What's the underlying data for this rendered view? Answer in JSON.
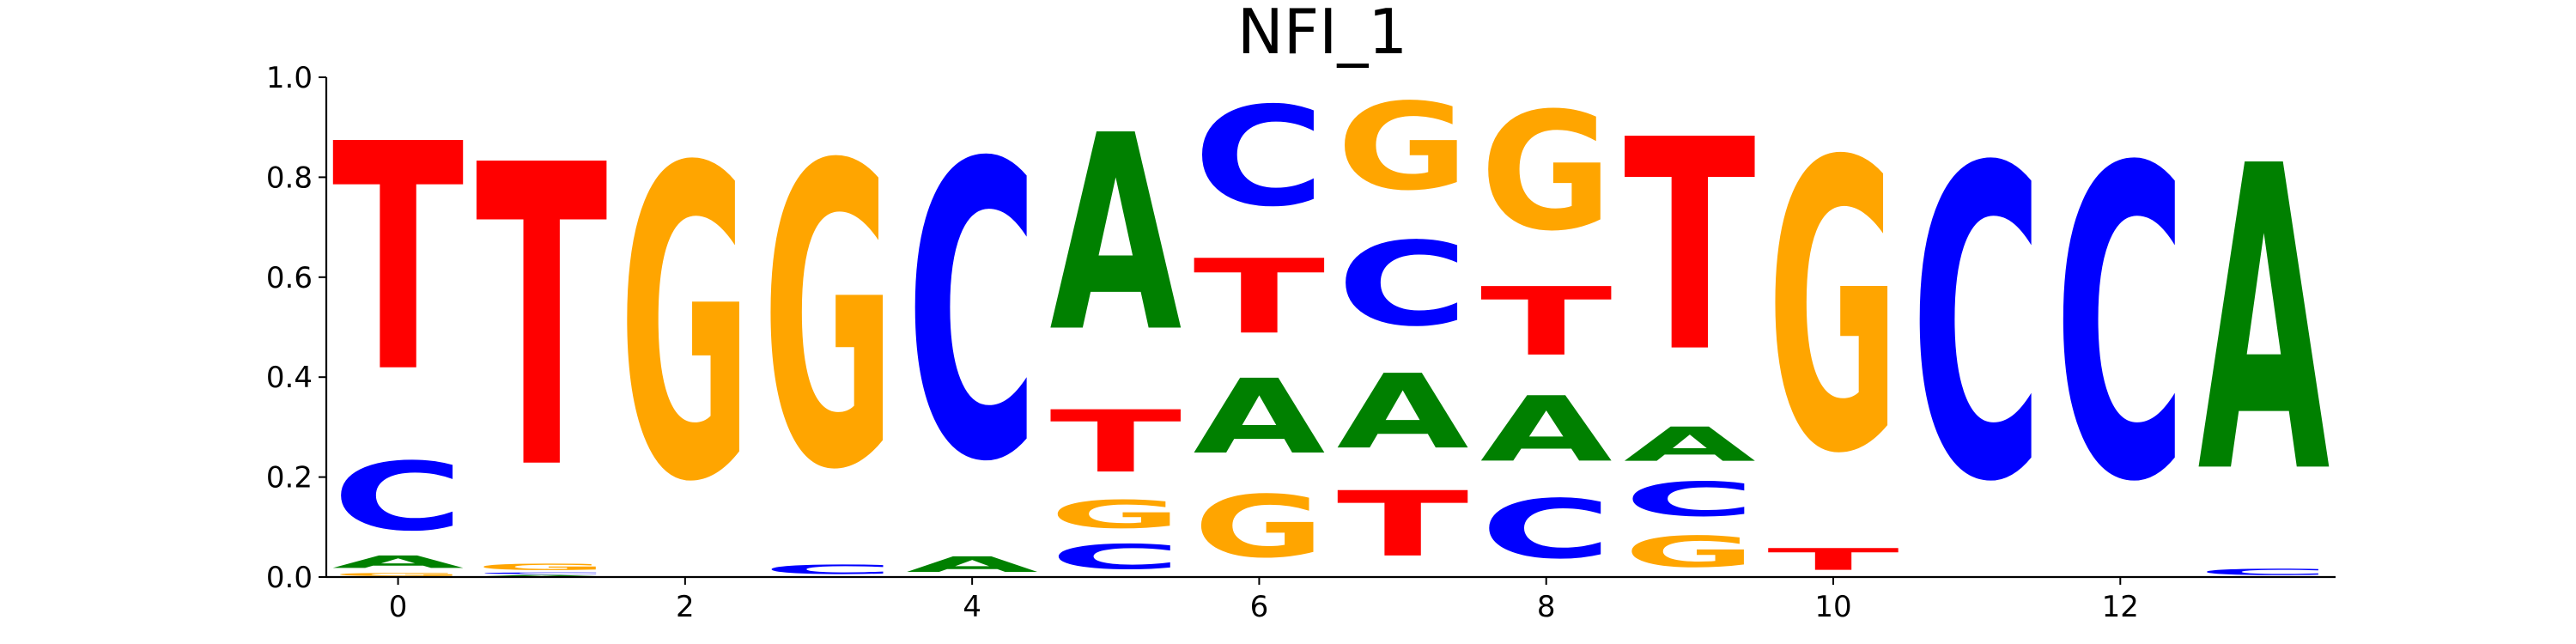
{
  "chart_data": {
    "type": "sequence-logo",
    "title": "NFI_1",
    "xlabel": "",
    "ylabel": "",
    "ylim": [
      0.0,
      1.0
    ],
    "xlim": [
      -0.5,
      13.5
    ],
    "x_ticks": [
      0,
      2,
      4,
      6,
      8,
      10,
      12
    ],
    "y_ticks": [
      0.0,
      0.2,
      0.4,
      0.6,
      0.8,
      1.0
    ],
    "x_tick_labels": [
      "0",
      "2",
      "4",
      "6",
      "8",
      "10",
      "12"
    ],
    "y_tick_labels": [
      "0.0",
      "0.2",
      "0.4",
      "0.6",
      "0.8",
      "1.0"
    ],
    "grid": false,
    "colors": {
      "A": "#008000",
      "C": "#0000ff",
      "G": "#ffa500",
      "T": "#ff0000"
    },
    "positions": [
      {
        "pos": 0,
        "stack": [
          [
            "G",
            0.01
          ],
          [
            "A",
            0.04
          ],
          [
            "C",
            0.22
          ],
          [
            "T",
            0.73
          ]
        ]
      },
      {
        "pos": 1,
        "stack": [
          [
            "A",
            0.005
          ],
          [
            "C",
            0.005
          ],
          [
            "G",
            0.02
          ],
          [
            "T",
            0.97
          ]
        ]
      },
      {
        "pos": 2,
        "stack": [
          [
            "G",
            1.0
          ]
        ]
      },
      {
        "pos": 3,
        "stack": [
          [
            "C",
            0.03
          ],
          [
            "G",
            0.97
          ]
        ]
      },
      {
        "pos": 4,
        "stack": [
          [
            "A",
            0.05
          ],
          [
            "C",
            0.95
          ]
        ]
      },
      {
        "pos": 5,
        "stack": [
          [
            "C",
            0.08
          ],
          [
            "G",
            0.09
          ],
          [
            "T",
            0.2
          ],
          [
            "A",
            0.63
          ]
        ]
      },
      {
        "pos": 6,
        "stack": [
          [
            "G",
            0.2
          ],
          [
            "A",
            0.24
          ],
          [
            "T",
            0.24
          ],
          [
            "C",
            0.32
          ]
        ]
      },
      {
        "pos": 7,
        "stack": [
          [
            "T",
            0.21
          ],
          [
            "A",
            0.24
          ],
          [
            "C",
            0.27
          ],
          [
            "G",
            0.28
          ]
        ]
      },
      {
        "pos": 8,
        "stack": [
          [
            "C",
            0.19
          ],
          [
            "A",
            0.21
          ],
          [
            "T",
            0.22
          ],
          [
            "G",
            0.38
          ]
        ]
      },
      {
        "pos": 9,
        "stack": [
          [
            "G",
            0.1
          ],
          [
            "C",
            0.11
          ],
          [
            "A",
            0.11
          ],
          [
            "T",
            0.68
          ]
        ]
      },
      {
        "pos": 10,
        "stack": [
          [
            "T",
            0.07
          ],
          [
            "G",
            0.93
          ]
        ]
      },
      {
        "pos": 11,
        "stack": [
          [
            "C",
            1.0
          ]
        ]
      },
      {
        "pos": 12,
        "stack": [
          [
            "C",
            1.0
          ]
        ]
      },
      {
        "pos": 13,
        "stack": [
          [
            "C",
            0.02
          ],
          [
            "A",
            0.98
          ]
        ]
      }
    ]
  }
}
